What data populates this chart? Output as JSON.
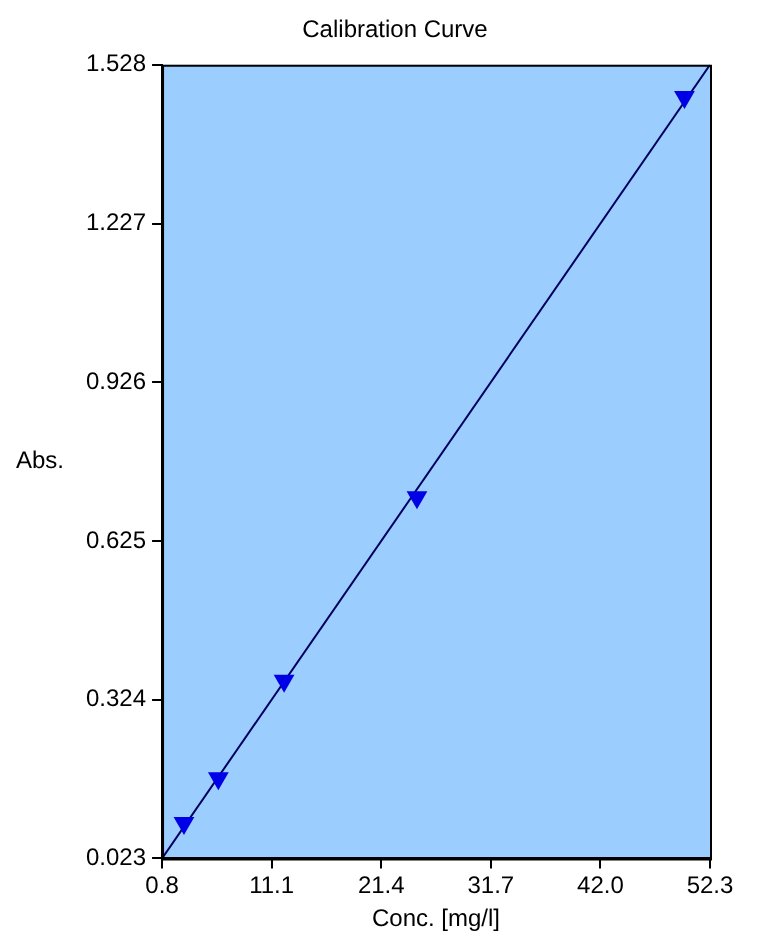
{
  "chart_data": {
    "type": "scatter",
    "title": "Calibration Curve",
    "xlabel": "Conc. [mg/l]",
    "ylabel": "Abs.",
    "xlim": [
      0.8,
      52.3
    ],
    "xticks": [
      0.8,
      11.1,
      21.4,
      31.7,
      {
        "value": 42,
        "label": "42.0"
      },
      52.3
    ],
    "ylim": [
      0.023,
      1.528
    ],
    "yticks": [
      0.023,
      0.324,
      0.625,
      0.926,
      1.227,
      1.528
    ],
    "grid": false,
    "legend": false,
    "marker": "triangle",
    "series": [
      {
        "type": "scatter",
        "color": "#0000e6",
        "x": [
          2.86,
          6.09,
          12.27,
          24.76,
          49.9
        ],
        "values": [
          0.09,
          0.175,
          0.36,
          0.708,
          1.467
        ]
      },
      {
        "type": "line",
        "color": "#000060",
        "marker": "none",
        "x": [
          0.8,
          52.3
        ],
        "values": [
          0.023,
          1.528
        ]
      }
    ]
  }
}
